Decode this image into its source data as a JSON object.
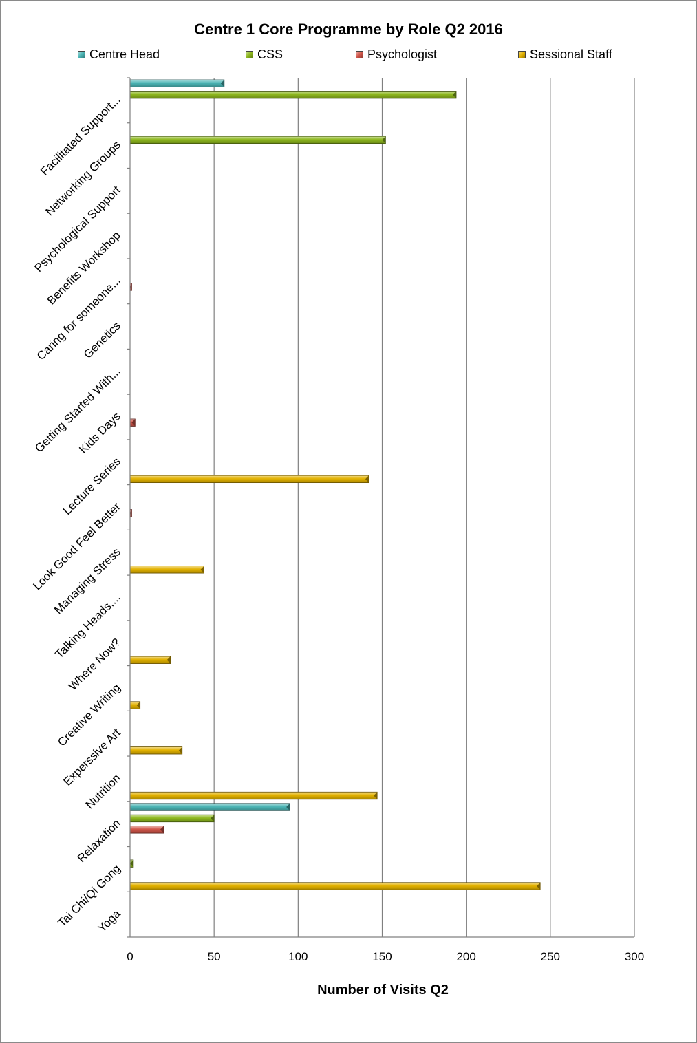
{
  "chart_data": {
    "type": "bar",
    "orientation": "horizontal",
    "title": "Centre 1 Core Programme by Role Q2 2016",
    "xlabel": "Number of Visits Q2",
    "ylabel": "",
    "xlim": [
      0,
      300
    ],
    "xticks": [
      0,
      50,
      100,
      150,
      200,
      250,
      300
    ],
    "grid": "vertical",
    "legend_position": "top",
    "categories": [
      "Facilitated Support...",
      "Networking Groups",
      "Psychological Support",
      "Benefits Workshop",
      "Caring for someone...",
      "Genetics",
      "Getting Started With...",
      "Kids Days",
      "Lecture Series",
      "Look Good Feel Better",
      "Managing Stress",
      "Talking Heads,...",
      "Where Now?",
      "Creative Writing",
      "Experssive Art",
      "Nutrition",
      "Relaxation",
      "Tai Chi/Qi Gong",
      "Yoga"
    ],
    "series": [
      {
        "name": "Centre Head",
        "color": "#4bb5b5",
        "values": [
          56,
          0,
          0,
          0,
          0,
          0,
          0,
          0,
          0,
          0,
          0,
          0,
          0,
          0,
          0,
          0,
          95,
          0,
          0
        ]
      },
      {
        "name": "CSS",
        "color": "#8eb81e",
        "values": [
          194,
          152,
          0,
          0,
          0,
          0,
          0,
          0,
          0,
          0,
          0,
          0,
          0,
          0,
          0,
          0,
          50,
          2,
          0
        ]
      },
      {
        "name": "Psychologist",
        "color": "#d2564a",
        "values": [
          0,
          0,
          0,
          0,
          1,
          0,
          0,
          3,
          0,
          1,
          0,
          0,
          0,
          0,
          0,
          0,
          20,
          0,
          0
        ]
      },
      {
        "name": "Sessional Staff",
        "color": "#e3b200",
        "values": [
          0,
          0,
          0,
          0,
          0,
          0,
          0,
          0,
          142,
          0,
          44,
          0,
          24,
          6,
          31,
          147,
          0,
          244,
          0
        ]
      }
    ]
  }
}
